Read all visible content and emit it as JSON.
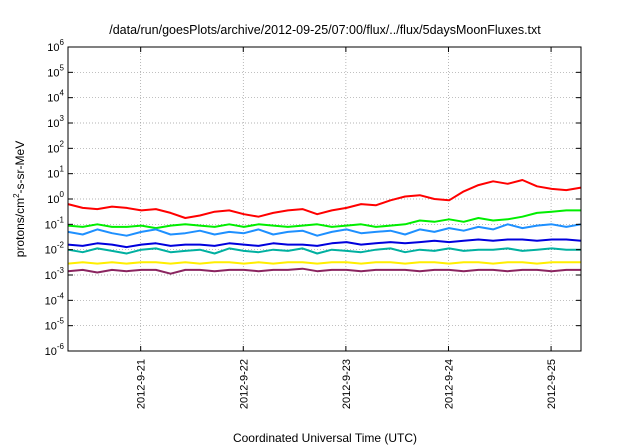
{
  "chart_data": {
    "type": "line",
    "title": "/data/run/goesPlots/archive/2012-09-25/07:00/flux/../flux/5daysMoonFluxes.txt",
    "xlabel": "Coordinated Universal Time (UTC)",
    "ylabel": {
      "pre": "protons/cm",
      "sup": "2",
      "post": "-s-sr-MeV"
    },
    "yscale": "log",
    "ylim_exp": [
      -6,
      6
    ],
    "y_ticks": [
      {
        "base": "10",
        "exp": "-6"
      },
      {
        "base": "10",
        "exp": "-5"
      },
      {
        "base": "10",
        "exp": "-4"
      },
      {
        "base": "10",
        "exp": "-3"
      },
      {
        "base": "10",
        "exp": "-2"
      },
      {
        "base": "10",
        "exp": "-1"
      },
      {
        "base": "10",
        "exp": "0"
      },
      {
        "base": "10",
        "exp": "1"
      },
      {
        "base": "10",
        "exp": "2"
      },
      {
        "base": "10",
        "exp": "3"
      },
      {
        "base": "10",
        "exp": "4"
      },
      {
        "base": "10",
        "exp": "5"
      },
      {
        "base": "10",
        "exp": "6"
      }
    ],
    "x_range": [
      "2012-09-20T07:00",
      "2012-09-25T07:00"
    ],
    "x_ticks": [
      "2012-9-21",
      "2012-9-22",
      "2012-9-23",
      "2012-9-24",
      "2012-9-25"
    ],
    "grid": true,
    "series": [
      {
        "color": "#ff0000",
        "log_values": [
          -0.2,
          -0.35,
          -0.4,
          -0.3,
          -0.35,
          -0.45,
          -0.4,
          -0.55,
          -0.75,
          -0.65,
          -0.5,
          -0.45,
          -0.6,
          -0.7,
          -0.55,
          -0.45,
          -0.4,
          -0.6,
          -0.45,
          -0.35,
          -0.2,
          -0.25,
          -0.05,
          0.1,
          0.15,
          0.0,
          -0.05,
          0.3,
          0.55,
          0.7,
          0.6,
          0.75,
          0.5,
          0.4,
          0.35,
          0.45
        ]
      },
      {
        "color": "#00ee00",
        "log_values": [
          -1.05,
          -1.1,
          -1.0,
          -1.1,
          -1.1,
          -1.05,
          -1.15,
          -1.05,
          -1.0,
          -1.05,
          -1.1,
          -1.0,
          -1.1,
          -1.0,
          -1.05,
          -1.1,
          -1.05,
          -1.0,
          -1.1,
          -1.05,
          -1.0,
          -1.1,
          -1.05,
          -1.0,
          -0.85,
          -0.9,
          -0.8,
          -0.9,
          -0.75,
          -0.85,
          -0.8,
          -0.7,
          -0.55,
          -0.5,
          -0.45,
          -0.45
        ]
      },
      {
        "color": "#1e90ff",
        "log_values": [
          -1.3,
          -1.4,
          -1.2,
          -1.35,
          -1.45,
          -1.3,
          -1.2,
          -1.4,
          -1.35,
          -1.25,
          -1.4,
          -1.3,
          -1.35,
          -1.2,
          -1.4,
          -1.3,
          -1.25,
          -1.45,
          -1.3,
          -1.2,
          -1.35,
          -1.3,
          -1.25,
          -1.4,
          -1.2,
          -1.3,
          -1.15,
          -1.25,
          -1.1,
          -1.2,
          -1.0,
          -1.15,
          -1.05,
          -1.0,
          -1.1,
          -1.0
        ]
      },
      {
        "color": "#0000dd",
        "log_values": [
          -1.8,
          -1.85,
          -1.75,
          -1.8,
          -1.9,
          -1.8,
          -1.75,
          -1.85,
          -1.8,
          -1.8,
          -1.85,
          -1.75,
          -1.8,
          -1.85,
          -1.75,
          -1.8,
          -1.8,
          -1.85,
          -1.75,
          -1.7,
          -1.8,
          -1.75,
          -1.7,
          -1.75,
          -1.7,
          -1.65,
          -1.7,
          -1.65,
          -1.6,
          -1.65,
          -1.6,
          -1.6,
          -1.65,
          -1.6,
          -1.6,
          -1.65
        ]
      },
      {
        "color": "#00b0a0",
        "log_values": [
          -2.0,
          -2.1,
          -1.95,
          -2.05,
          -2.15,
          -2.0,
          -1.95,
          -2.1,
          -2.05,
          -2.0,
          -2.15,
          -1.95,
          -2.05,
          -2.1,
          -2.0,
          -2.05,
          -1.95,
          -2.15,
          -2.0,
          -2.05,
          -2.1,
          -2.0,
          -1.95,
          -2.1,
          -2.0,
          -2.05,
          -1.95,
          -2.05,
          -2.0,
          -2.0,
          -1.95,
          -2.05,
          -2.0,
          -1.95,
          -2.0,
          -2.0
        ]
      },
      {
        "color": "#ffee00",
        "log_values": [
          -2.55,
          -2.5,
          -2.55,
          -2.5,
          -2.55,
          -2.5,
          -2.5,
          -2.55,
          -2.5,
          -2.55,
          -2.5,
          -2.5,
          -2.55,
          -2.5,
          -2.55,
          -2.5,
          -2.5,
          -2.55,
          -2.5,
          -2.5,
          -2.55,
          -2.5,
          -2.5,
          -2.55,
          -2.5,
          -2.5,
          -2.55,
          -2.5,
          -2.5,
          -2.55,
          -2.5,
          -2.5,
          -2.55,
          -2.5,
          -2.5,
          -2.5
        ]
      },
      {
        "color": "#8b2560",
        "log_values": [
          -2.85,
          -2.8,
          -2.9,
          -2.8,
          -2.85,
          -2.8,
          -2.8,
          -2.95,
          -2.8,
          -2.8,
          -2.85,
          -2.8,
          -2.8,
          -2.85,
          -2.8,
          -2.8,
          -2.75,
          -2.85,
          -2.8,
          -2.8,
          -2.85,
          -2.8,
          -2.8,
          -2.8,
          -2.85,
          -2.8,
          -2.8,
          -2.85,
          -2.8,
          -2.8,
          -2.85,
          -2.8,
          -2.8,
          -2.85,
          -2.8,
          -2.8
        ]
      }
    ]
  }
}
